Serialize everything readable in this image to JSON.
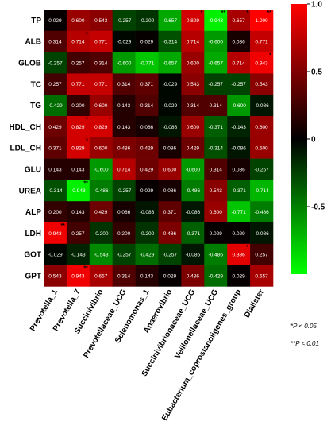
{
  "chart_data": {
    "type": "heatmap",
    "rows": [
      "TP",
      "ALB",
      "GLOB",
      "TC",
      "TG",
      "HDL_CH",
      "LDL_CH",
      "GLU",
      "UREA",
      "ALP",
      "LDH",
      "GOT",
      "GPT"
    ],
    "columns": [
      "Prevotella_1",
      "Prevotella_7",
      "Succinivibrio",
      "Prevotellaceae_UCG",
      "Selenomonas_1",
      "Anaerovibrio",
      "Succinivibrionaceae_UCG",
      "Veillonellaceae_UCG",
      "Eubacterium_coprostanoligenes_group",
      "Dialister"
    ],
    "values": [
      [
        0.029,
        0.6,
        0.543,
        -0.257,
        -0.2,
        -0.657,
        0.829,
        -0.943,
        0.657,
        1.0
      ],
      [
        0.314,
        0.714,
        0.771,
        -0.029,
        0.029,
        -0.314,
        0.714,
        -0.6,
        0.086,
        0.771
      ],
      [
        -0.257,
        0.257,
        0.314,
        -0.6,
        -0.771,
        -0.657,
        0.6,
        -0.657,
        0.714,
        0.943
      ],
      [
        0.257,
        0.771,
        0.771,
        0.314,
        0.371,
        -0.029,
        0.543,
        -0.257,
        -0.257,
        0.543
      ],
      [
        -0.429,
        0.2,
        0.6,
        0.143,
        0.314,
        -0.029,
        0.314,
        0.314,
        -0.6,
        -0.086
      ],
      [
        0.429,
        0.829,
        0.829,
        0.143,
        0.086,
        -0.086,
        0.6,
        -0.371,
        -0.143,
        0.6
      ],
      [
        0.371,
        0.829,
        0.6,
        0.486,
        0.429,
        0.086,
        0.429,
        -0.314,
        -0.086,
        0.6
      ],
      [
        0.143,
        0.143,
        -0.6,
        0.714,
        0.429,
        0.6,
        -0.6,
        0.314,
        0.086,
        -0.257
      ],
      [
        -0.314,
        -0.943,
        -0.486,
        -0.257,
        0.029,
        0.086,
        -0.486,
        0.543,
        -0.371,
        -0.714
      ],
      [
        0.2,
        0.143,
        0.429,
        0.086,
        -0.086,
        0.371,
        -0.086,
        0.6,
        -0.771,
        -0.486
      ],
      [
        0.943,
        0.257,
        -0.2,
        0.2,
        -0.2,
        0.486,
        -0.371,
        0.029,
        0.029,
        -0.086
      ],
      [
        -0.029,
        -0.143,
        -0.543,
        -0.257,
        -0.429,
        -0.257,
        -0.086,
        -0.486,
        0.886,
        0.257
      ],
      [
        0.543,
        0.943,
        0.657,
        0.314,
        0.143,
        0.029,
        0.486,
        -0.429,
        0.029,
        0.657
      ]
    ],
    "value_labels": [
      [
        "0.029",
        "0.600",
        "0.543",
        "-0.257",
        "-0.200",
        "-0.657",
        "0.829",
        "-0.943",
        "0.657",
        "1.000"
      ],
      [
        "0.314",
        "0.714",
        "0.771",
        "-0.029",
        "0.029",
        "-0.314",
        "0.714",
        "-0.600",
        "0.086",
        "0.771"
      ],
      [
        "-0.257",
        "0.257",
        "0.314",
        "-0.600",
        "-0.771",
        "-0.657",
        "0.600",
        "-0.657",
        "0.714",
        "0.943"
      ],
      [
        "0.257",
        "0.771",
        "0.771",
        "0.314",
        "0.371",
        "-0.029",
        "0.543",
        "-0.257",
        "-0.257",
        "0.543"
      ],
      [
        "-0.429",
        "0.200",
        "0.600",
        "0.143",
        "0.314",
        "-0.029",
        "0.314",
        "0.314",
        "-0.600",
        "-0.086"
      ],
      [
        "0.429",
        "0.829",
        "0.829",
        "0.143",
        "0.086",
        "-0.086",
        "0.600",
        "-0.371",
        "-0.143",
        "0.600"
      ],
      [
        "0.371",
        "0.829",
        "0.600",
        "0.486",
        "0.429",
        "0.086",
        "0.429",
        "-0.314",
        "-0.086",
        "0.600"
      ],
      [
        "0.143",
        "0.143",
        "-0.600",
        "0.714",
        "0.429",
        "0.600",
        "-0.600",
        "0.314",
        "0.086",
        "-0.257"
      ],
      [
        "-0.314",
        "-0.943",
        "-0.486",
        "-0.257",
        "0.029",
        "0.086",
        "-0.486",
        "0.543",
        "-0.371",
        "-0.714"
      ],
      [
        "0.200",
        "0.143",
        "0.429",
        "0.086",
        "-0.086",
        "0.371",
        "-0.086",
        "0.600",
        "-0.771",
        "-0.486"
      ],
      [
        "0.943",
        "0.257",
        "-0.200",
        "0.200",
        "-0.200",
        "0.486",
        "-0.371",
        "0.029",
        "0.029",
        "-0.086"
      ],
      [
        "-0.029",
        "-0.143",
        "-0.543",
        "-0.257",
        "-0.429",
        "-0.257",
        "-0.086",
        "-0.486",
        "0.886",
        "0.257"
      ],
      [
        "0.543",
        "0.943",
        "0.657",
        "0.314",
        "0.143",
        "0.029",
        "0.486",
        "-0.429",
        "0.029",
        "0.657"
      ]
    ],
    "significance": [
      [
        "",
        "",
        "",
        "",
        "",
        "",
        "*",
        "**",
        "*",
        "**"
      ],
      [
        "",
        "*",
        "",
        "",
        "",
        "",
        "",
        "",
        "",
        ""
      ],
      [
        "",
        "",
        "",
        "",
        "",
        "",
        "",
        "",
        "",
        "*"
      ],
      [
        "",
        "",
        "",
        "",
        "",
        "",
        "",
        "",
        "",
        ""
      ],
      [
        "",
        "",
        "",
        "",
        "",
        "",
        "",
        "",
        "",
        ""
      ],
      [
        "",
        "*",
        "*",
        "",
        "",
        "",
        "",
        "",
        "",
        ""
      ],
      [
        "",
        "*",
        "",
        "",
        "",
        "",
        "",
        "",
        "",
        ""
      ],
      [
        "",
        "",
        "",
        "",
        "",
        "",
        "",
        "",
        "",
        ""
      ],
      [
        "",
        "**",
        "",
        "",
        "",
        "",
        "",
        "",
        "",
        ""
      ],
      [
        "",
        "",
        "",
        "",
        "",
        "",
        "",
        "",
        "",
        ""
      ],
      [
        "**",
        "",
        "",
        "",
        "",
        "",
        "",
        "",
        "",
        ""
      ],
      [
        "",
        "",
        "",
        "",
        "",
        "",
        "",
        "",
        "*",
        ""
      ],
      [
        "",
        "**",
        "",
        "",
        "",
        "",
        "",
        "",
        "",
        ""
      ]
    ],
    "colorbar": {
      "range": [
        -1,
        1
      ],
      "ticks": [
        1.0,
        0.5,
        0,
        -0.5
      ],
      "tick_labels": [
        "1.0",
        "0.5",
        "0",
        "-0.5"
      ],
      "high_color": "#ff0000",
      "mid_color": "#000000",
      "low_color": "#00ff00"
    },
    "legend_notes": [
      "*P < 0.05",
      "**P < 0.01"
    ]
  }
}
